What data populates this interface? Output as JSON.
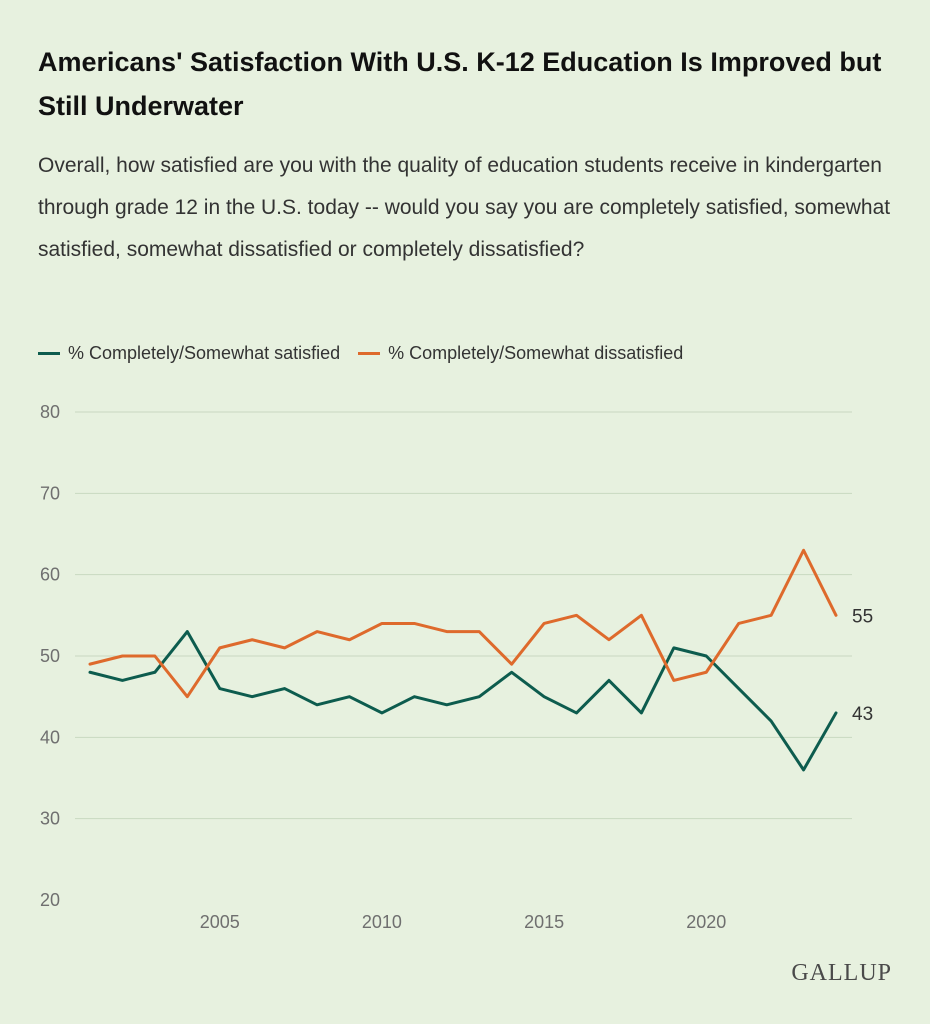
{
  "chart_data": {
    "type": "line",
    "title": "Americans' Satisfaction With U.S. K-12 Education Is Improved but Still Underwater",
    "subtitle": "Overall, how satisfied are you with the quality of education students receive in kindergarten through grade 12 in the U.S. today -- would you say you are completely satisfied, somewhat satisfied, somewhat dissatisfied or completely dissatisfied?",
    "x": [
      2001,
      2002,
      2003,
      2004,
      2005,
      2006,
      2007,
      2008,
      2009,
      2010,
      2011,
      2012,
      2013,
      2014,
      2015,
      2016,
      2017,
      2018,
      2019,
      2020,
      2021,
      2022,
      2023,
      2024
    ],
    "series": [
      {
        "name": "% Completely/Somewhat satisfied",
        "color": "#0d5c4e",
        "values": [
          48,
          47,
          48,
          53,
          46,
          45,
          46,
          44,
          45,
          43,
          45,
          44,
          45,
          48,
          45,
          43,
          47,
          43,
          51,
          50,
          46,
          42,
          36,
          43
        ],
        "end_label": "43"
      },
      {
        "name": "% Completely/Somewhat dissatisfied",
        "color": "#de6a2c",
        "values": [
          49,
          50,
          50,
          45,
          51,
          52,
          51,
          53,
          52,
          54,
          54,
          53,
          53,
          49,
          54,
          55,
          52,
          55,
          47,
          48,
          54,
          55,
          63,
          55
        ],
        "end_label": "55"
      }
    ],
    "ylim": [
      20,
      80
    ],
    "yticks": [
      "80",
      "70",
      "60",
      "50",
      "40",
      "30",
      "20"
    ],
    "xticks": [
      "2005",
      "2010",
      "2015",
      "2020"
    ],
    "xlabel": "",
    "ylabel": "",
    "grid": true,
    "legend": "top-left"
  },
  "brand": "GALLUP"
}
